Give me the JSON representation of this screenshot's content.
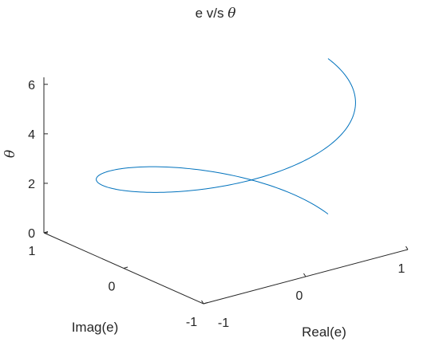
{
  "chart_data": {
    "type": "line",
    "plot_kind": "3d-line",
    "title_text": "e v/s ",
    "title_symbol": "θ",
    "xlabel": "Real(e)",
    "ylabel": "Imag(e)",
    "zlabel": "θ",
    "xlim": [
      -1,
      1
    ],
    "ylim": [
      -1,
      1
    ],
    "zlim": [
      0,
      6.2832
    ],
    "xticks": [
      -1,
      0,
      1
    ],
    "yticks": [
      -1,
      0,
      1
    ],
    "zticks": [
      0,
      2,
      4,
      6
    ],
    "grid": false,
    "legend": "none",
    "line_color": "#0072BD",
    "series": [
      {
        "parametric": "x = cos(θ), y = sin(θ), z = θ",
        "t_range": [
          0,
          6.2832
        ],
        "samples": 200
      }
    ]
  }
}
